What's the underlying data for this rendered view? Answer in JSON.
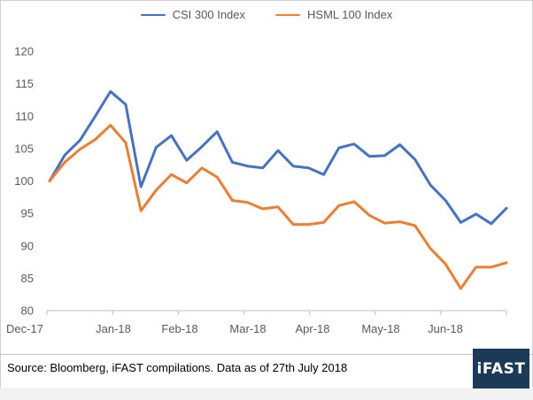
{
  "legend": [
    {
      "name": "CSI 300 Index",
      "color": "#4472C4"
    },
    {
      "name": "HSML 100 Index",
      "color": "#ED7D31"
    }
  ],
  "footer": {
    "source": "Source: Bloomberg, iFAST compilations. Data as of 27th July 2018",
    "logo": "iFAST"
  },
  "chart_data": {
    "type": "line",
    "title": "",
    "xlabel": "",
    "ylabel": "",
    "ylim": [
      80,
      120
    ],
    "yticks": [
      80,
      85,
      90,
      95,
      100,
      105,
      110,
      115,
      120
    ],
    "x_tick_labels": [
      "Dec-17",
      "Jan-18",
      "Feb-18",
      "Mar-18",
      "Apr-18",
      "May-18",
      "Jun-18"
    ],
    "grid": false,
    "legend_position": "top",
    "series": [
      {
        "name": "CSI 300 Index",
        "color": "#4472C4",
        "values": [
          100,
          104,
          106.3,
          110,
          113.8,
          111.8,
          99.1,
          105.2,
          107.0,
          103.2,
          105.3,
          107.6,
          102.9,
          102.3,
          102.0,
          104.7,
          102.3,
          102.0,
          101.0,
          105.1,
          105.7,
          103.8,
          103.9,
          105.6,
          103.3,
          99.4,
          97.0,
          93.6,
          94.9,
          93.4,
          95.8
        ]
      },
      {
        "name": "HSML 100 Index",
        "color": "#ED7D31",
        "values": [
          100,
          102.9,
          104.9,
          106.4,
          108.6,
          105.9,
          95.4,
          98.6,
          101.0,
          99.7,
          102.0,
          100.6,
          97.0,
          96.7,
          95.7,
          96.0,
          93.3,
          93.3,
          93.6,
          96.2,
          96.8,
          94.7,
          93.5,
          93.7,
          93.1,
          89.6,
          87.2,
          83.4,
          86.7,
          86.7,
          87.4
        ]
      }
    ]
  }
}
